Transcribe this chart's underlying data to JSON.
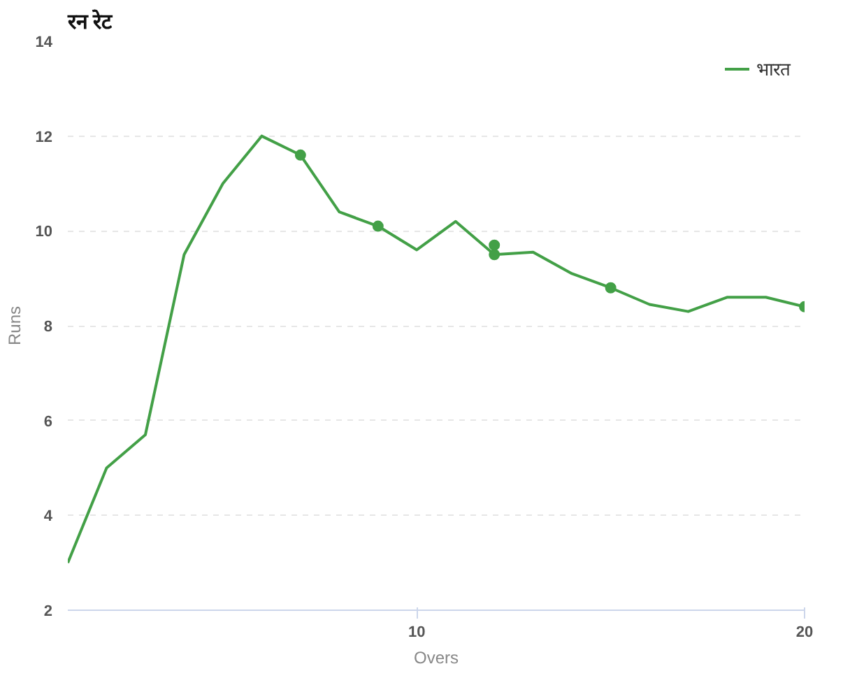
{
  "chart_data": {
    "type": "line",
    "title": "रन रेट",
    "xlabel": "Overs",
    "ylabel": "Runs",
    "x": [
      1,
      2,
      3,
      4,
      5,
      6,
      7,
      8,
      9,
      10,
      11,
      12,
      13,
      14,
      15,
      16,
      17,
      18,
      19,
      20
    ],
    "series": [
      {
        "name": "भारत",
        "color": "#43a047",
        "marker": "none",
        "values": [
          3.0,
          5.0,
          5.7,
          9.5,
          11.0,
          12.0,
          11.6,
          10.4,
          10.1,
          9.6,
          10.2,
          9.5,
          9.55,
          9.1,
          8.8,
          8.45,
          8.3,
          8.6,
          8.6,
          8.4
        ]
      },
      {
        "type": "scatter",
        "color": "#43a047",
        "marker": "circle",
        "x": [
          7,
          9,
          12,
          12,
          15,
          20
        ],
        "values": [
          11.6,
          10.1,
          9.7,
          9.5,
          8.8,
          8.4
        ]
      }
    ],
    "xlim": [
      1,
      20
    ],
    "xticks": [
      10,
      20
    ],
    "ylim": [
      2,
      14
    ],
    "yticks": [
      2,
      4,
      6,
      8,
      10,
      12,
      14
    ],
    "grid": "y",
    "legend": "top right",
    "line_style": "solid"
  }
}
